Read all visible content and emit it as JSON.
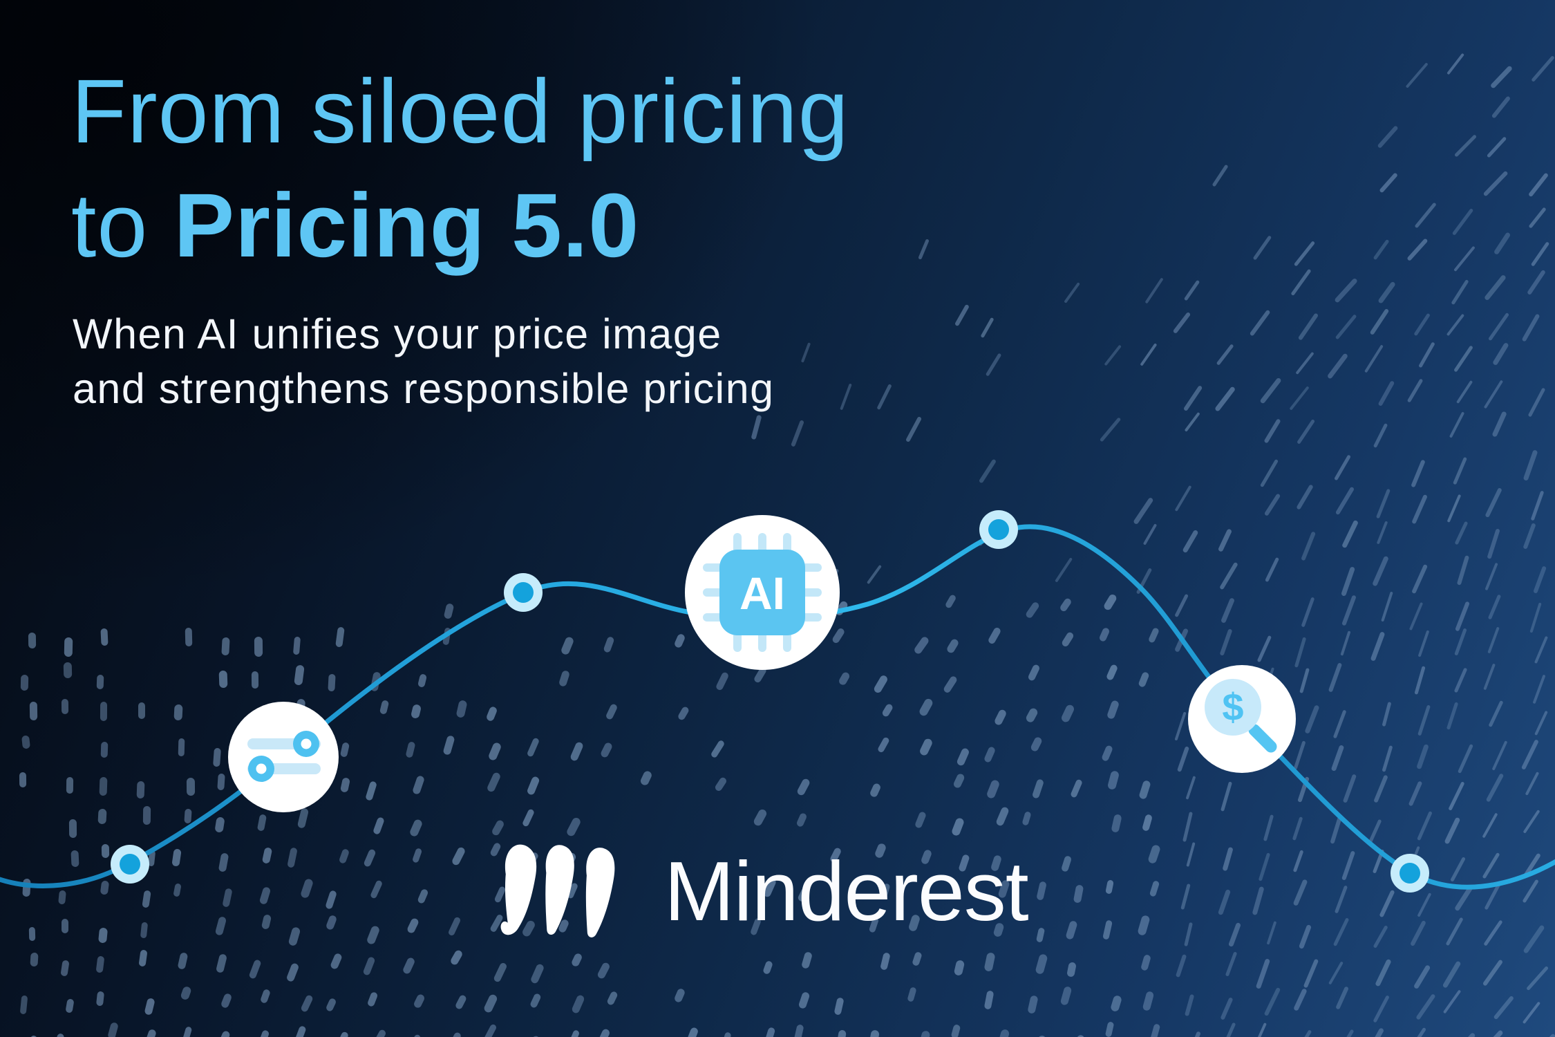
{
  "page": {
    "type": "promotional-banner",
    "brand": "Minderest"
  },
  "headline": {
    "line1": "From siloed pricing",
    "line2_regular": "to ",
    "line2_bold": "Pricing 5.0",
    "color": "#5ec6f4"
  },
  "subtitle": {
    "line1": "When AI unifies your price image",
    "line2": "and strengthens responsible pricing",
    "color": "#f3f6fa"
  },
  "brand": {
    "wordmark": "Minderest",
    "mark": "triple-wave-m-mark"
  },
  "decor": {
    "icons": [
      {
        "name": "sliders-icon",
        "meaning": "price settings / controls"
      },
      {
        "name": "ai-chip-icon",
        "label": "AI",
        "meaning": "artificial intelligence chip"
      },
      {
        "name": "price-magnifier-icon",
        "symbol": "$",
        "meaning": "price monitoring search"
      }
    ],
    "colors": {
      "accent_blue": "#54c4f2",
      "pale_blue": "#c9e9fa",
      "dot_inner": "#14a2dc",
      "dot_ring": "#c6ecfb",
      "line_blue": "#1e9bd6",
      "texture_dash": "#7e9cbe",
      "background_dark": "#04080f",
      "background_light": "#1f4a7e"
    }
  }
}
